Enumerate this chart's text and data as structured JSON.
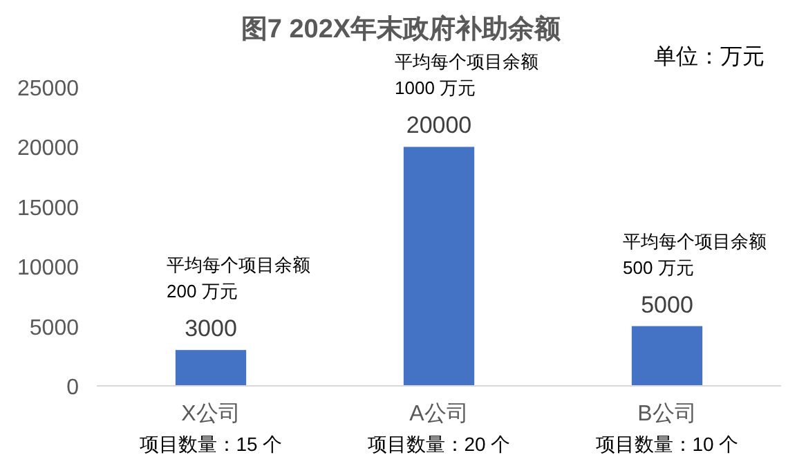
{
  "chart_data": {
    "type": "bar",
    "title": "图7 202X年末政府补助余额",
    "subtitle": "单位：万元",
    "categories": [
      "X公司",
      "A公司",
      "B公司"
    ],
    "values": [
      3000,
      20000,
      5000
    ],
    "color": "#4472c4",
    "data_labels": true,
    "ylim": [
      0,
      25000
    ],
    "yticks": [
      0,
      5000,
      10000,
      15000,
      20000,
      25000
    ],
    "grid": false,
    "annotations": [
      "平均每个项目余额\n200 万元",
      "平均每个项目余额\n1000 万元",
      "平均每个项目余额\n500 万元",
      "项目数量：15 个",
      "项目数量：20 个",
      "项目数量：10 个"
    ]
  }
}
